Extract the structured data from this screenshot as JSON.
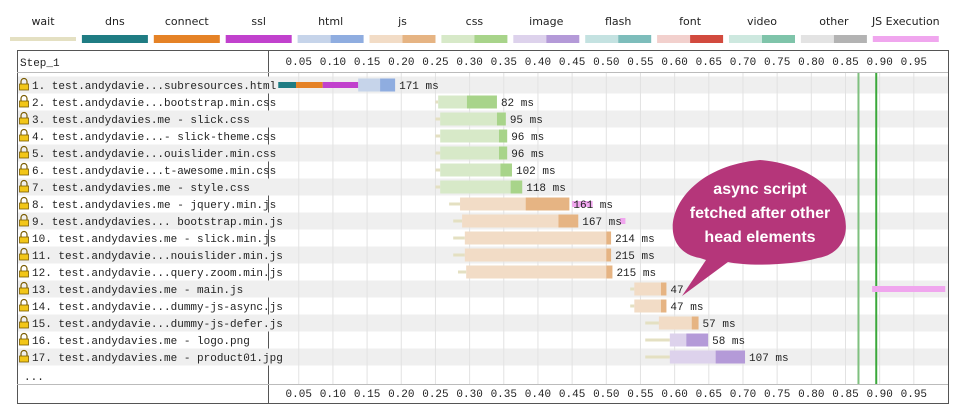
{
  "chart_data": {
    "type": "waterfall",
    "legend": [
      {
        "name": "wait",
        "color": "#e4e0c2"
      },
      {
        "name": "dns",
        "color": "#1f7c83"
      },
      {
        "name": "connect",
        "color": "#e58226"
      },
      {
        "name": "ssl",
        "color": "#c141cd"
      },
      {
        "name": "html",
        "color": "#c6d4ea",
        "color2": "#8fade0"
      },
      {
        "name": "js",
        "color": "#f2dcc6",
        "color2": "#e6b483"
      },
      {
        "name": "css",
        "color": "#d7e9c8",
        "color2": "#a8d48a"
      },
      {
        "name": "image",
        "color": "#ddd2ec",
        "color2": "#b49ad8"
      },
      {
        "name": "flash",
        "color": "#c4e2e1",
        "color2": "#7dbdbb"
      },
      {
        "name": "font",
        "color": "#f2d0cd",
        "color2": "#d24a3e"
      },
      {
        "name": "video",
        "color": "#cde8df",
        "color2": "#7fc4aa"
      },
      {
        "name": "other",
        "color": "#e3e3e3",
        "color2": "#b3b3b3"
      },
      {
        "name": "JS Execution",
        "color": "#f0a6ee"
      }
    ],
    "step": "Step_1",
    "xlim": [
      0.005,
      1.0
    ],
    "xticks": [
      0.05,
      {
        "value": 0.1,
        "label": "0.10"
      },
      0.15,
      {
        "value": 0.2,
        "label": "0.20"
      },
      0.25,
      {
        "value": 0.3,
        "label": "0.30"
      },
      0.35,
      {
        "value": 0.4,
        "label": "0.40"
      },
      0.45,
      {
        "value": 0.5,
        "label": "0.50"
      },
      0.55,
      {
        "value": 0.6,
        "label": "0.60"
      },
      0.65,
      {
        "value": 0.7,
        "label": "0.70"
      },
      0.75,
      {
        "value": 0.8,
        "label": "0.80"
      },
      0.85,
      {
        "value": 0.9,
        "label": "0.90"
      },
      0.95
    ],
    "markers": [
      {
        "value": 0.869,
        "color": "#7fc07f"
      },
      {
        "value": 0.895,
        "color": "#3aa83a"
      }
    ],
    "requests": [
      {
        "label": "1. test.andydavie...subresources.html",
        "type": "html",
        "start": 0.02,
        "dns_end": 0.046,
        "connect_end": 0.085,
        "ssl_end": 0.137,
        "download_start": 0.169,
        "end": 0.191,
        "duration_label": "171 ms"
      },
      {
        "label": "2. test.andydavie...bootstrap.min.css",
        "type": "css",
        "wait": 0.25,
        "start": 0.254,
        "download_start": 0.296,
        "end": 0.34,
        "duration_label": "82 ms"
      },
      {
        "label": "3. test.andydavies.me - slick.css",
        "type": "css",
        "wait": 0.25,
        "start": 0.257,
        "download_start": 0.34,
        "end": 0.353,
        "duration_label": "95 ms"
      },
      {
        "label": "4. test.andydavie...- slick-theme.css",
        "type": "css",
        "wait": 0.25,
        "start": 0.257,
        "download_start": 0.343,
        "end": 0.355,
        "duration_label": "96 ms"
      },
      {
        "label": "5. test.andydavie...ouislider.min.css",
        "type": "css",
        "wait": 0.25,
        "start": 0.257,
        "download_start": 0.343,
        "end": 0.355,
        "duration_label": "96 ms"
      },
      {
        "label": "6. test.andydavie...t-awesome.min.css",
        "type": "css",
        "wait": 0.25,
        "start": 0.257,
        "download_start": 0.345,
        "end": 0.362,
        "duration_label": "102 ms"
      },
      {
        "label": "7. test.andydavies.me - style.css",
        "type": "css",
        "wait": 0.25,
        "start": 0.257,
        "download_start": 0.36,
        "end": 0.377,
        "duration_label": "118 ms"
      },
      {
        "label": "8. test.andydavies.me - jquery.min.js",
        "type": "js",
        "wait": 0.27,
        "start": 0.286,
        "download_start": 0.382,
        "end": 0.446,
        "duration_label": "161 ms",
        "js_exec": [
          0.45,
          0.48
        ]
      },
      {
        "label": "9. test.andydavies... bootstrap.min.js",
        "type": "js",
        "wait": 0.276,
        "start": 0.289,
        "download_start": 0.43,
        "end": 0.459,
        "duration_label": "167 ms",
        "js_exec": [
          0.52,
          0.528
        ]
      },
      {
        "label": "10. test.andydavies.me - slick.min.js",
        "type": "js",
        "wait": 0.276,
        "start": 0.293,
        "download_start": 0.5,
        "end": 0.507,
        "duration_label": "214 ms"
      },
      {
        "label": "11. test.andydavie...nouislider.min.js",
        "type": "js",
        "wait": 0.276,
        "start": 0.293,
        "download_start": 0.5,
        "end": 0.507,
        "duration_label": "215 ms"
      },
      {
        "label": "12. test.andydavie...query.zoom.min.js",
        "type": "js",
        "wait": 0.283,
        "start": 0.295,
        "download_start": 0.5,
        "end": 0.509,
        "duration_label": "215 ms"
      },
      {
        "label": "13. test.andydavies.me - main.js",
        "type": "js",
        "wait": 0.535,
        "start": 0.541,
        "download_start": 0.58,
        "end": 0.588,
        "duration_label": "47",
        "js_exec": [
          0.889,
          0.996
        ]
      },
      {
        "label": "14. test.andydavie...dummy-js-async.js",
        "type": "js",
        "wait": 0.535,
        "start": 0.541,
        "download_start": 0.58,
        "end": 0.588,
        "duration_label": "47 ms"
      },
      {
        "label": "15. test.andydavie...dummy-js-defer.js",
        "type": "js",
        "wait": 0.557,
        "start": 0.577,
        "download_start": 0.625,
        "end": 0.635,
        "duration_label": "57 ms"
      },
      {
        "label": "16. test.andydavies.me - logo.png",
        "type": "image",
        "wait": 0.557,
        "start": 0.593,
        "download_start": 0.617,
        "end": 0.649,
        "duration_label": "58 ms"
      },
      {
        "label": "17. test.andydavies.me - product01.jpg",
        "type": "image",
        "wait": 0.557,
        "start": 0.593,
        "download_start": 0.66,
        "end": 0.703,
        "duration_label": "107 ms"
      }
    ],
    "more": "...",
    "callout": [
      "async script",
      "fetched after other",
      "head elements"
    ]
  }
}
